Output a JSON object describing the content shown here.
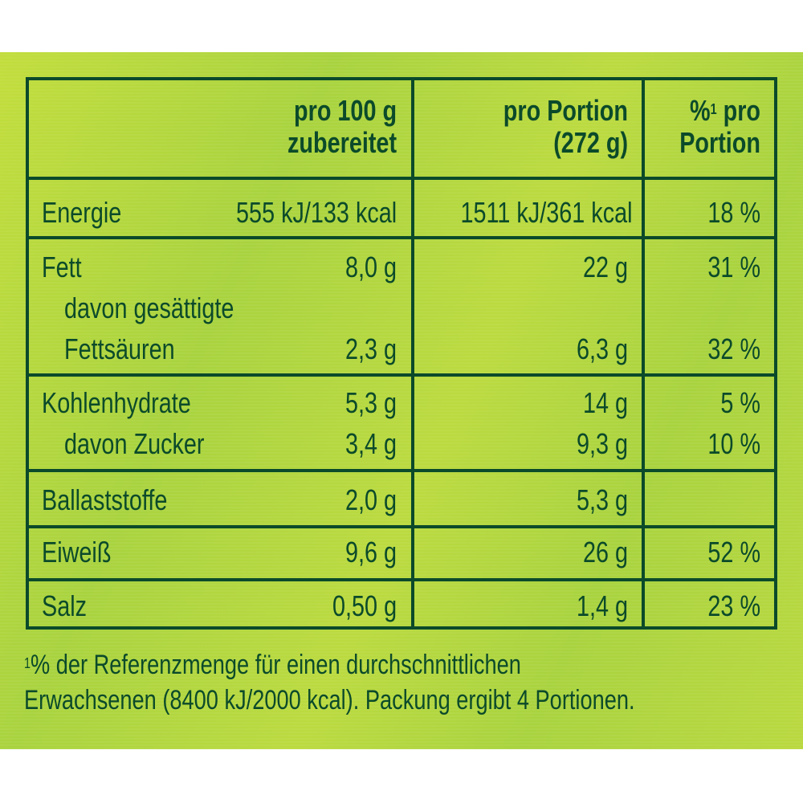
{
  "header": {
    "col1": [
      "pro 100 g",
      "zubereitet"
    ],
    "col2": [
      "pro Portion",
      "(272 g)"
    ],
    "col3_sup": "1",
    "col3": [
      "%",
      " pro",
      "Portion"
    ]
  },
  "rows": [
    {
      "label": "Energie",
      "per100": "555 kJ/133 kcal",
      "portion": "1511 kJ/361 kcal",
      "pct": "18 %"
    },
    {
      "label": "Fett",
      "per100": "8,0 g",
      "portion": "22 g",
      "pct": "31 %"
    },
    {
      "label": "davon gesättigte",
      "per100": "",
      "portion": "",
      "pct": ""
    },
    {
      "label": "Fettsäuren",
      "per100": "2,3 g",
      "portion": "6,3 g",
      "pct": "32 %"
    },
    {
      "label": "Kohlenhydrate",
      "per100": "5,3 g",
      "portion": "14 g",
      "pct": "5 %"
    },
    {
      "label": "davon Zucker",
      "per100": "3,4 g",
      "portion": "9,3 g",
      "pct": "10 %"
    },
    {
      "label": "Ballaststoffe",
      "per100": "2,0 g",
      "portion": "5,3 g",
      "pct": ""
    },
    {
      "label": "Eiweiß",
      "per100": "9,6 g",
      "portion": "26 g",
      "pct": "52 %"
    },
    {
      "label": "Salz",
      "per100": "0,50 g",
      "portion": "1,4 g",
      "pct": "23 %"
    }
  ],
  "footnote": {
    "sup": "1",
    "line1": "% der Referenzmenge für einen durchschnittlichen",
    "line2": "Erwachsenen (8400 kJ/2000 kcal). Packung ergibt 4 Portionen."
  },
  "colors": {
    "text": "#0b4a2a",
    "background": "#a9d33e"
  }
}
